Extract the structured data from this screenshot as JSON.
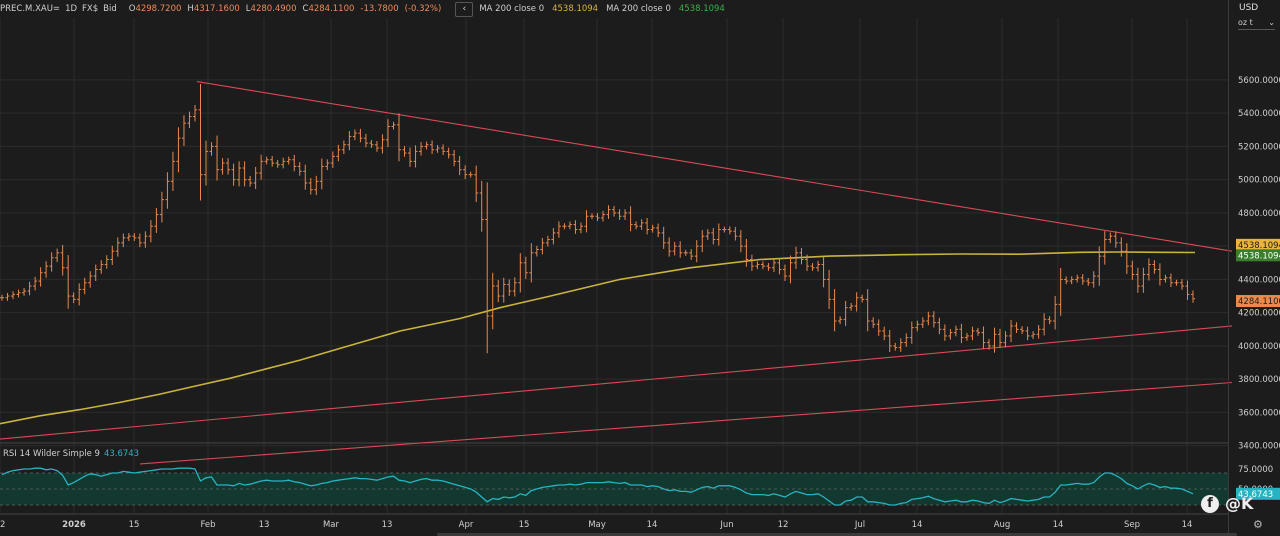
{
  "header": {
    "symbol": "PREC.M.XAU=",
    "interval": "1D",
    "source": "FX$",
    "price_type": "Bid",
    "open_label": "O",
    "open": "4298.7200",
    "high_label": "H",
    "high": "4317.1600",
    "low_label": "L",
    "low": "4280.4900",
    "close_label": "C",
    "close": "4284.1100",
    "change": "-13.7800",
    "change_pct": "(-0.32%)",
    "collapse_icon": "chevron-left-icon",
    "ma1_label": "MA 200 close 0",
    "ma1_value": "4538.1094",
    "ma2_label": "MA 200 close 0",
    "ma2_value": "4538.1094"
  },
  "right_panel": {
    "currency": "USD",
    "unit": "oz t",
    "unit_icon": "chevron-down-icon"
  },
  "rsi": {
    "label": "RSI 14 Wilder Simple 9",
    "value": "43.6743"
  },
  "colors": {
    "background": "#1c1c1c",
    "bars": "#e8894f",
    "ma": "#c9b43c",
    "trendline": "#d84a55",
    "rsi_line": "#27b3c2",
    "rsi_fill": "#12382f",
    "grid": "#2b2b2b"
  },
  "watermark": "@K",
  "chart_data": [
    {
      "type": "ohlc",
      "ylim": [
        3300,
        5800
      ],
      "y_ticks": [
        "3400.0000",
        "3600.0000",
        "3800.0000",
        "4000.0000",
        "4200.0000",
        "4400.0000",
        "4600.0000",
        "4800.0000",
        "5000.0000",
        "5200.0000",
        "5400.0000",
        "5600.0000"
      ],
      "x_labels": [
        "2",
        "2026",
        "15",
        "Feb",
        "13",
        "Mar",
        "13",
        "Apr",
        "15",
        "May",
        "14",
        "Jun",
        "12",
        "Jul",
        "14",
        "Aug",
        "14",
        "Sep",
        "14"
      ],
      "series": [
        {
          "name": "XAU",
          "values": [
            4290,
            4300,
            4310,
            4320,
            4330,
            4360,
            4390,
            4440,
            4480,
            4530,
            4560,
            4470,
            4300,
            4280,
            4340,
            4380,
            4420,
            4460,
            4490,
            4520,
            4570,
            4620,
            4650,
            4660,
            4650,
            4620,
            4660,
            4720,
            4790,
            4880,
            4990,
            5110,
            5250,
            5340,
            5380,
            5420,
            5030,
            5170,
            5200,
            5060,
            5100,
            5060,
            5000,
            5070,
            5000,
            4980,
            5040,
            5110,
            5120,
            5100,
            5090,
            5110,
            5120,
            5080,
            5050,
            4980,
            4940,
            4990,
            5080,
            5100,
            5140,
            5180,
            5210,
            5260,
            5280,
            5250,
            5220,
            5210,
            5190,
            5240,
            5320,
            5330,
            5180,
            5160,
            5110,
            5170,
            5200,
            5210,
            5180,
            5190,
            5170,
            5150,
            5110,
            5060,
            5030,
            5030,
            4920,
            4760,
            4180,
            4360,
            4300,
            4370,
            4330,
            4380,
            4500,
            4440,
            4560,
            4580,
            4620,
            4640,
            4680,
            4720,
            4720,
            4730,
            4700,
            4720,
            4780,
            4780,
            4770,
            4790,
            4820,
            4800,
            4780,
            4800,
            4730,
            4720,
            4740,
            4700,
            4710,
            4680,
            4620,
            4570,
            4600,
            4560,
            4560,
            4540,
            4600,
            4660,
            4680,
            4640,
            4700,
            4700,
            4690,
            4660,
            4600,
            4520,
            4480,
            4490,
            4480,
            4470,
            4500,
            4460,
            4420,
            4500,
            4560,
            4520,
            4480,
            4470,
            4490,
            4400,
            4280,
            4150,
            4160,
            4230,
            4240,
            4290,
            4280,
            4150,
            4130,
            4090,
            4060,
            4000,
            3990,
            4020,
            4050,
            4110,
            4130,
            4150,
            4180,
            4140,
            4100,
            4060,
            4080,
            4100,
            4050,
            4060,
            4090,
            4080,
            4020,
            4000,
            4070,
            4020,
            4060,
            4120,
            4100,
            4090,
            4060,
            4070,
            4100,
            4160,
            4150,
            4250,
            4400,
            4390,
            4400,
            4410,
            4390,
            4380,
            4420,
            4540,
            4640,
            4660,
            4620,
            4570,
            4480,
            4430,
            4360,
            4430,
            4490,
            4460,
            4400,
            4410,
            4380,
            4380,
            4360,
            4310,
            4284
          ]
        }
      ]
    },
    {
      "type": "line",
      "series": [
        {
          "name": "MA 200 close 0",
          "x": [
            0,
            40,
            80,
            120,
            160,
            200,
            230,
            265,
            300,
            340,
            400,
            460,
            500,
            550,
            620,
            690,
            760,
            830,
            900,
            960,
            1020,
            1080,
            1120,
            1160,
            1195
          ],
          "values": [
            3532,
            3580,
            3617,
            3660,
            3710,
            3765,
            3805,
            3860,
            3915,
            3985,
            4090,
            4165,
            4230,
            4300,
            4400,
            4470,
            4520,
            4540,
            4549,
            4553,
            4552,
            4563,
            4565,
            4563,
            4562
          ]
        }
      ]
    },
    {
      "type": "line",
      "series": [
        {
          "name": "",
          "x": [
            197,
            1232
          ],
          "values": [
            5590,
            4570
          ]
        },
        {
          "name": "",
          "x": [
            0,
            1232
          ],
          "values": [
            3440,
            4120
          ]
        },
        {
          "name": "",
          "x": [
            140,
            1232
          ],
          "values": [
            3290,
            3780
          ]
        }
      ]
    },
    {
      "type": "line",
      "ylim": [
        30,
        85
      ],
      "y_ticks": [
        "75.0000",
        "50.0000"
      ],
      "bands": [
        70,
        50,
        30
      ],
      "series": [
        {
          "name": "RSI 14 Wilder Simple 9",
          "values": [
            68,
            71,
            73,
            74,
            75,
            75,
            76,
            76,
            74,
            75,
            73,
            67,
            55,
            58,
            62,
            66,
            69,
            68,
            66,
            68,
            70,
            70,
            72,
            71,
            70,
            71,
            72,
            73,
            74,
            75,
            75,
            75,
            76,
            76,
            76,
            75,
            60,
            64,
            65,
            55,
            55,
            55,
            54,
            57,
            55,
            56,
            58,
            60,
            61,
            60,
            60,
            60,
            61,
            59,
            58,
            56,
            54,
            55,
            57,
            58,
            60,
            61,
            62,
            63,
            64,
            63,
            63,
            62,
            61,
            63,
            65,
            66,
            61,
            60,
            58,
            60,
            62,
            63,
            61,
            61,
            60,
            58,
            56,
            54,
            52,
            50,
            46,
            40,
            34,
            38,
            37,
            40,
            39,
            40,
            44,
            42,
            48,
            50,
            52,
            53,
            54,
            55,
            55,
            56,
            55,
            56,
            58,
            58,
            58,
            58,
            59,
            58,
            57,
            58,
            55,
            55,
            55,
            53,
            54,
            53,
            50,
            48,
            49,
            47,
            47,
            46,
            49,
            52,
            53,
            51,
            54,
            54,
            54,
            52,
            49,
            45,
            43,
            43,
            43,
            42,
            44,
            42,
            40,
            44,
            47,
            45,
            43,
            43,
            44,
            40,
            35,
            30,
            30,
            35,
            36,
            40,
            40,
            34,
            34,
            33,
            32,
            30,
            30,
            32,
            33,
            37,
            38,
            39,
            41,
            38,
            36,
            34,
            35,
            36,
            34,
            34,
            36,
            35,
            33,
            32,
            36,
            33,
            35,
            38,
            37,
            36,
            35,
            36,
            37,
            40,
            40,
            46,
            55,
            55,
            56,
            57,
            56,
            56,
            58,
            65,
            70,
            70,
            67,
            63,
            57,
            54,
            50,
            54,
            57,
            55,
            52,
            53,
            51,
            51,
            50,
            47,
            44
          ]
        }
      ]
    }
  ]
}
